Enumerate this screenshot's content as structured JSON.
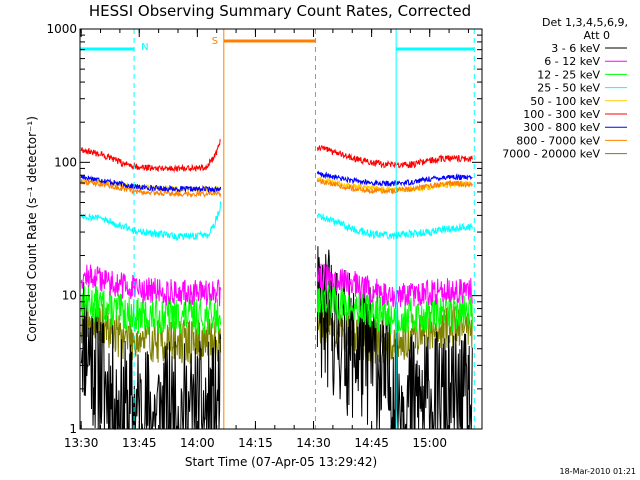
{
  "chart_data": {
    "type": "line",
    "title": "HESSI Observing Summary Count Rates, Corrected",
    "xlabel": "Start Time (07-Apr-05 13:29:42)",
    "ylabel": "Corrected Count Rate (s⁻¹ detector⁻¹)",
    "y_scale": "log",
    "ylim": [
      1,
      1000
    ],
    "y_ticks": [
      {
        "value": 1,
        "label": "1"
      },
      {
        "value": 10,
        "label": "10"
      },
      {
        "value": 100,
        "label": "100"
      },
      {
        "value": 1000,
        "label": "1000"
      }
    ],
    "xlim": [
      "13:29:42",
      "15:13:30"
    ],
    "x_ticks": [
      "13:30",
      "13:45",
      "14:00",
      "14:15",
      "14:30",
      "14:45",
      "15:00"
    ],
    "legend_header": [
      "Det 1,3,4,5,6,9,",
      "Att 0"
    ],
    "series": [
      {
        "name": "3 - 6 keV",
        "color": "#000000",
        "seed": 11,
        "noise": 0.55,
        "points": [
          [
            "13:30",
            6
          ],
          [
            "13:32",
            4
          ],
          [
            "13:34",
            3
          ],
          [
            "13:36",
            2.2
          ],
          [
            "13:40",
            1.4
          ],
          [
            "13:45",
            1.3
          ],
          [
            "13:55",
            1.3
          ],
          [
            "14:04",
            1.3
          ],
          [
            "14:05",
            1.5
          ],
          [
            "14:06",
            1.5
          ],
          [
            "14:31",
            8
          ],
          [
            "14:35",
            6
          ],
          [
            "14:40",
            4
          ],
          [
            "14:45",
            3.5
          ],
          [
            "14:50",
            2
          ],
          [
            "14:55",
            1.6
          ],
          [
            "15:00",
            1.6
          ],
          [
            "15:05",
            1.5
          ],
          [
            "15:11",
            1.5
          ]
        ]
      },
      {
        "name": "6 - 12 keV",
        "color": "#ff00ff",
        "seed": 12,
        "noise": 0.1,
        "points": [
          [
            "13:30",
            14
          ],
          [
            "13:35",
            13.5
          ],
          [
            "13:40",
            12
          ],
          [
            "13:45",
            11
          ],
          [
            "13:55",
            10.5
          ],
          [
            "14:04",
            10.5
          ],
          [
            "14:06",
            10.5
          ],
          [
            "14:31",
            14
          ],
          [
            "14:35",
            13.5
          ],
          [
            "14:40",
            12.5
          ],
          [
            "14:45",
            11
          ],
          [
            "14:50",
            10
          ],
          [
            "14:55",
            10
          ],
          [
            "15:00",
            10.5
          ],
          [
            "15:05",
            11
          ],
          [
            "15:11",
            11
          ]
        ]
      },
      {
        "name": "12 - 25 keV",
        "color": "#00ff00",
        "seed": 13,
        "noise": 0.14,
        "points": [
          [
            "13:30",
            9
          ],
          [
            "13:35",
            8.5
          ],
          [
            "13:40",
            7.5
          ],
          [
            "13:45",
            7
          ],
          [
            "13:55",
            7
          ],
          [
            "14:04",
            7
          ],
          [
            "14:06",
            7
          ],
          [
            "14:31",
            9.5
          ],
          [
            "14:35",
            9
          ],
          [
            "14:40",
            8
          ],
          [
            "14:45",
            7.5
          ],
          [
            "14:50",
            7
          ],
          [
            "14:55",
            7
          ],
          [
            "15:00",
            7.2
          ],
          [
            "15:05",
            7.5
          ],
          [
            "15:11",
            7.5
          ]
        ]
      },
      {
        "name": "25 - 50 keV",
        "color": "#00ffff",
        "seed": 14,
        "noise": 0.03,
        "points": [
          [
            "13:30",
            40
          ],
          [
            "13:35",
            38
          ],
          [
            "13:40",
            34
          ],
          [
            "13:45",
            30
          ],
          [
            "13:55",
            28
          ],
          [
            "14:03",
            28
          ],
          [
            "14:05",
            38
          ],
          [
            "14:06",
            48
          ],
          [
            "14:31",
            40
          ],
          [
            "14:35",
            36
          ],
          [
            "14:40",
            32
          ],
          [
            "14:45",
            29
          ],
          [
            "14:50",
            28
          ],
          [
            "14:55",
            29
          ],
          [
            "15:00",
            30
          ],
          [
            "15:05",
            32
          ],
          [
            "15:11",
            33
          ]
        ]
      },
      {
        "name": "50 - 100 keV",
        "color": "#ffcc00",
        "seed": 15,
        "noise": 0.02,
        "points": [
          [
            "13:30",
            73
          ],
          [
            "13:35",
            71
          ],
          [
            "13:40",
            68
          ],
          [
            "13:45",
            65
          ],
          [
            "13:55",
            63
          ],
          [
            "14:04",
            63
          ],
          [
            "14:06",
            63
          ],
          [
            "14:31",
            75
          ],
          [
            "14:35",
            71
          ],
          [
            "14:40",
            67
          ],
          [
            "14:45",
            64
          ],
          [
            "14:50",
            63
          ],
          [
            "14:55",
            63
          ],
          [
            "15:00",
            65
          ],
          [
            "15:05",
            68
          ],
          [
            "15:11",
            70
          ]
        ]
      },
      {
        "name": "100 - 300 keV",
        "color": "#ff0000",
        "seed": 16,
        "noise": 0.025,
        "points": [
          [
            "13:30",
            125
          ],
          [
            "13:35",
            115
          ],
          [
            "13:40",
            100
          ],
          [
            "13:45",
            92
          ],
          [
            "13:55",
            90
          ],
          [
            "14:02",
            92
          ],
          [
            "14:04",
            105
          ],
          [
            "14:05",
            120
          ],
          [
            "14:06",
            150
          ],
          [
            "14:31",
            130
          ],
          [
            "14:35",
            120
          ],
          [
            "14:40",
            108
          ],
          [
            "14:45",
            100
          ],
          [
            "14:50",
            95
          ],
          [
            "14:55",
            96
          ],
          [
            "15:00",
            103
          ],
          [
            "15:05",
            108
          ],
          [
            "15:11",
            106
          ]
        ]
      },
      {
        "name": "300 - 800 keV",
        "color": "#0000ff",
        "seed": 17,
        "noise": 0.02,
        "points": [
          [
            "13:30",
            78
          ],
          [
            "13:35",
            74
          ],
          [
            "13:40",
            69
          ],
          [
            "13:45",
            65
          ],
          [
            "13:55",
            63
          ],
          [
            "14:04",
            63
          ],
          [
            "14:06",
            63
          ],
          [
            "14:31",
            82
          ],
          [
            "14:35",
            78
          ],
          [
            "14:40",
            73
          ],
          [
            "14:45",
            70
          ],
          [
            "14:50",
            69
          ],
          [
            "14:55",
            71
          ],
          [
            "15:00",
            75
          ],
          [
            "15:05",
            78
          ],
          [
            "15:11",
            76
          ]
        ]
      },
      {
        "name": "800 - 7000 keV",
        "color": "#ff8000",
        "seed": 18,
        "noise": 0.02,
        "points": [
          [
            "13:30",
            72
          ],
          [
            "13:35",
            69
          ],
          [
            "13:40",
            64
          ],
          [
            "13:45",
            60
          ],
          [
            "13:55",
            58
          ],
          [
            "14:04",
            58
          ],
          [
            "14:06",
            58
          ],
          [
            "14:31",
            72
          ],
          [
            "14:35",
            68
          ],
          [
            "14:40",
            64
          ],
          [
            "14:45",
            61
          ],
          [
            "14:50",
            61
          ],
          [
            "14:55",
            63
          ],
          [
            "15:00",
            66
          ],
          [
            "15:05",
            70
          ],
          [
            "15:11",
            68
          ]
        ]
      },
      {
        "name": "7000 - 20000 keV",
        "color": "#808000",
        "seed": 19,
        "noise": 0.17,
        "points": [
          [
            "13:30",
            6.5
          ],
          [
            "13:35",
            6
          ],
          [
            "13:40",
            5
          ],
          [
            "13:45",
            4.7
          ],
          [
            "13:55",
            4.5
          ],
          [
            "14:04",
            4.6
          ],
          [
            "14:06",
            4.6
          ],
          [
            "14:31",
            6.5
          ],
          [
            "14:35",
            6
          ],
          [
            "14:40",
            5
          ],
          [
            "14:45",
            4.6
          ],
          [
            "14:50",
            4.4
          ],
          [
            "14:55",
            5
          ],
          [
            "15:00",
            5.5
          ],
          [
            "15:05",
            6
          ],
          [
            "15:11",
            6
          ]
        ]
      }
    ],
    "annotations": {
      "night_label": "N",
      "night_intervals": [
        [
          "13:29:42",
          "13:43:40"
        ],
        [
          "14:51:20",
          "15:11:30"
        ]
      ],
      "night_color": "#00ffff",
      "saa_label": "S",
      "saa_intervals": [
        [
          "14:06:50",
          "14:30:30"
        ]
      ],
      "saa_color": "#ff8000"
    }
  },
  "footer": {
    "date_stamp": "18-Mar-2010 01:21"
  }
}
